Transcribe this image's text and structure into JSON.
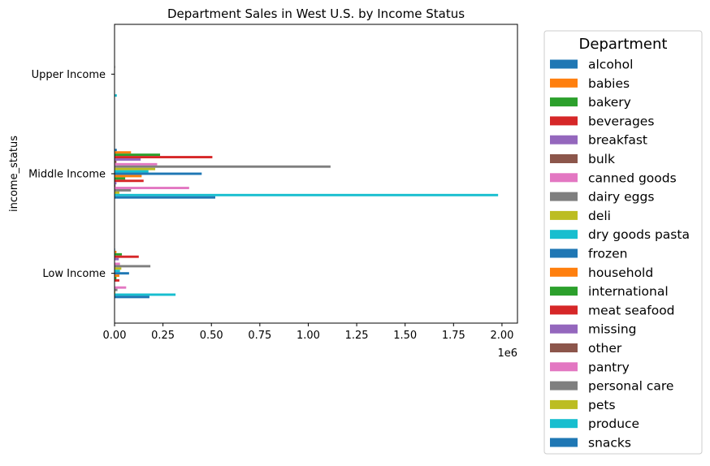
{
  "chart_data": {
    "type": "bar",
    "orientation": "horizontal",
    "title": "Department Sales in West U.S. by Income Status",
    "xlabel": "",
    "ylabel": "income_status",
    "x_offset_label": "1e6",
    "xlim": [
      0,
      2080000
    ],
    "xticks": [
      0,
      250000,
      500000,
      750000,
      1000000,
      1250000,
      1500000,
      1750000,
      2000000
    ],
    "xtick_labels": [
      "0.00",
      "0.25",
      "0.50",
      "0.75",
      "1.00",
      "1.25",
      "1.50",
      "1.75",
      "2.00"
    ],
    "categories": [
      "Low Income",
      "Middle Income",
      "Upper Income"
    ],
    "legend_title": "Department",
    "legend_position": "outside-right",
    "grid": false,
    "series": [
      {
        "name": "alcohol",
        "color": "#1f77b4",
        "values": [
          3000,
          12000,
          0
        ]
      },
      {
        "name": "babies",
        "color": "#ff7f0e",
        "values": [
          10000,
          85000,
          0
        ]
      },
      {
        "name": "bakery",
        "color": "#2ca02c",
        "values": [
          38000,
          235000,
          1000
        ]
      },
      {
        "name": "beverages",
        "color": "#d62728",
        "values": [
          125000,
          505000,
          1000
        ]
      },
      {
        "name": "breakfast",
        "color": "#9467bd",
        "values": [
          22000,
          135000,
          500
        ]
      },
      {
        "name": "bulk",
        "color": "#8c564b",
        "values": [
          2000,
          10000,
          0
        ]
      },
      {
        "name": "canned goods",
        "color": "#e377c2",
        "values": [
          28000,
          220000,
          1000
        ]
      },
      {
        "name": "dairy eggs",
        "color": "#7f7f7f",
        "values": [
          185000,
          1115000,
          3000
        ]
      },
      {
        "name": "deli",
        "color": "#bcbd22",
        "values": [
          35000,
          210000,
          1000
        ]
      },
      {
        "name": "dry goods pasta",
        "color": "#17becf",
        "values": [
          28000,
          175000,
          1000
        ]
      },
      {
        "name": "frozen",
        "color": "#1f77b4",
        "values": [
          75000,
          450000,
          2000
        ]
      },
      {
        "name": "household",
        "color": "#ff7f0e",
        "values": [
          25000,
          140000,
          500
        ]
      },
      {
        "name": "international",
        "color": "#2ca02c",
        "values": [
          10000,
          55000,
          500
        ]
      },
      {
        "name": "meat seafood",
        "color": "#d62728",
        "values": [
          25000,
          150000,
          1000
        ]
      },
      {
        "name": "missing",
        "color": "#9467bd",
        "values": [
          2000,
          10000,
          0
        ]
      },
      {
        "name": "other",
        "color": "#8c564b",
        "values": [
          1000,
          5000,
          0
        ]
      },
      {
        "name": "pantry",
        "color": "#e377c2",
        "values": [
          60000,
          385000,
          1000
        ]
      },
      {
        "name": "personal care",
        "color": "#7f7f7f",
        "values": [
          15000,
          85000,
          500
        ]
      },
      {
        "name": "pets",
        "color": "#bcbd22",
        "values": [
          4000,
          25000,
          0
        ]
      },
      {
        "name": "produce",
        "color": "#17becf",
        "values": [
          315000,
          1980000,
          12000
        ]
      },
      {
        "name": "snacks",
        "color": "#1f77b4",
        "values": [
          180000,
          520000,
          1000
        ]
      }
    ]
  }
}
